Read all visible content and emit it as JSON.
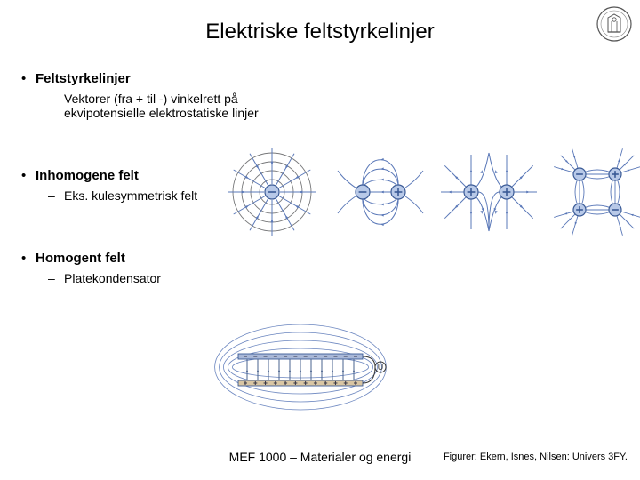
{
  "title": "Elektriske feltstyrkelinjer",
  "bullets": [
    {
      "heading": "Feltstyrkelinjer",
      "sub": "Vektorer (fra + til -) vinkelrett på ekvipotensielle elektrostatiske linjer"
    },
    {
      "heading": "Inhomogene felt",
      "sub": "Eks. kulesymmetrisk felt"
    },
    {
      "heading": "Homogent felt",
      "sub": "Platekondensator"
    }
  ],
  "footer_center": "MEF 1000 – Materialer og energi",
  "footer_right": "Figurer: Ekern, Isnes, Nilsen: Univers 3FY.",
  "colors": {
    "text": "#000000",
    "bg": "#ffffff",
    "field_line": "#5a78b8",
    "field_line_dark": "#4a638f",
    "equipotential": "#77787a",
    "charge_fill": "#b8c9e8",
    "charge_stroke": "#3a5a96",
    "plate_pos": "#d9c6a3",
    "plate_neg": "#a9b8d8"
  },
  "figures": {
    "radial": {
      "type": "radial-field",
      "center_sign": "-",
      "eq_circles": [
        14,
        24,
        34,
        44
      ],
      "rays": 12,
      "inward": true
    },
    "dipole_unlike": {
      "type": "dipole",
      "left_sign": "-",
      "right_sign": "+",
      "sep": 40
    },
    "dipole_like": {
      "type": "dipole",
      "left_sign": "+",
      "right_sign": "+",
      "sep": 40
    },
    "quadrupole": {
      "type": "quadrupole",
      "signs": [
        "-",
        "+",
        "+",
        "-"
      ]
    },
    "capacitor": {
      "type": "capacitor",
      "top_sign": "-",
      "bottom_sign": "+",
      "n_lines": 11
    }
  }
}
